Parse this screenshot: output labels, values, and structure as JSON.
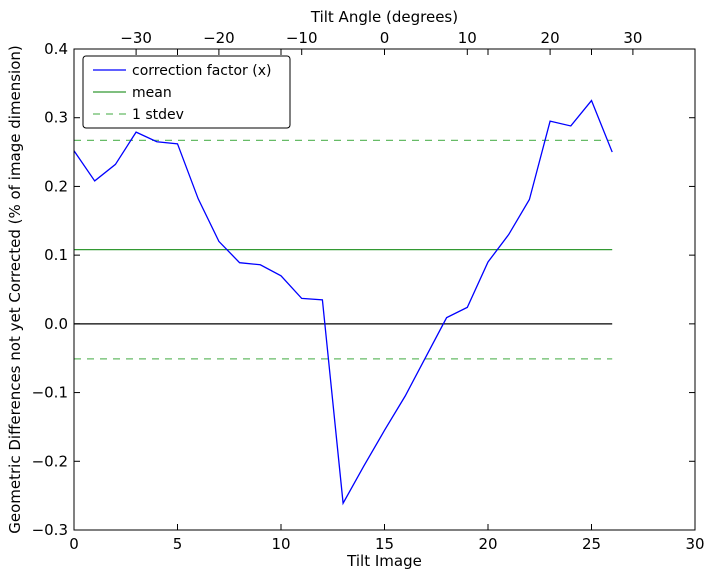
{
  "chart_data": {
    "type": "line",
    "title": "",
    "xlabel": "Tilt Image",
    "ylabel": "Geometric Differences not yet Corrected (% of image dimension)",
    "secondary_xlabel": "Tilt Angle (degrees)",
    "xlim": [
      0,
      30
    ],
    "ylim": [
      -0.3,
      0.4
    ],
    "secondary_xlim": [
      -37.5,
      37.5
    ],
    "x_ticks": [
      0,
      5,
      10,
      15,
      20,
      25,
      30
    ],
    "x_tick_labels": [
      "0",
      "5",
      "10",
      "15",
      "20",
      "25",
      "30"
    ],
    "y_ticks": [
      -0.3,
      -0.2,
      -0.1,
      0.0,
      0.1,
      0.2,
      0.3,
      0.4
    ],
    "y_tick_labels": [
      "−0.3",
      "−0.2",
      "−0.1",
      "0.0",
      "0.1",
      "0.2",
      "0.3",
      "0.4"
    ],
    "secondary_x_ticks": [
      -30,
      -20,
      -10,
      0,
      10,
      20,
      30
    ],
    "secondary_x_tick_labels": [
      "−30",
      "−20",
      "−10",
      "0",
      "10",
      "20",
      "30"
    ],
    "grid": false,
    "legend_position": "top-left",
    "series": [
      {
        "name": "correction factor (x)",
        "color": "#0000ff",
        "style": "solid",
        "x": [
          0,
          1,
          2,
          3,
          4,
          5,
          6,
          7,
          8,
          9,
          10,
          11,
          12,
          13,
          14,
          15,
          16,
          17,
          18,
          19,
          20,
          21,
          22,
          23,
          24,
          25,
          26
        ],
        "y": [
          0.252,
          0.208,
          0.232,
          0.279,
          0.265,
          0.262,
          0.182,
          0.12,
          0.089,
          0.086,
          0.07,
          0.037,
          0.035,
          -0.261,
          -0.207,
          -0.155,
          -0.105,
          -0.048,
          0.009,
          0.024,
          0.09,
          0.13,
          0.181,
          0.295,
          0.288,
          0.325,
          0.25
        ]
      },
      {
        "name": "mean",
        "color": "#339933",
        "style": "solid",
        "x": [
          0,
          26
        ],
        "y": [
          0.108,
          0.108
        ]
      },
      {
        "name": "1 stdev",
        "color": "#66bb66",
        "style": "dashed",
        "x": [
          0,
          26
        ],
        "y": [
          0.267,
          0.267
        ]
      },
      {
        "name": "",
        "color": "#66bb66",
        "style": "dashed",
        "x": [
          0,
          26
        ],
        "y": [
          -0.051,
          -0.051
        ]
      },
      {
        "name": "",
        "color": "#000000",
        "style": "solid",
        "x": [
          0,
          26
        ],
        "y": [
          0.0,
          0.0
        ]
      }
    ]
  }
}
